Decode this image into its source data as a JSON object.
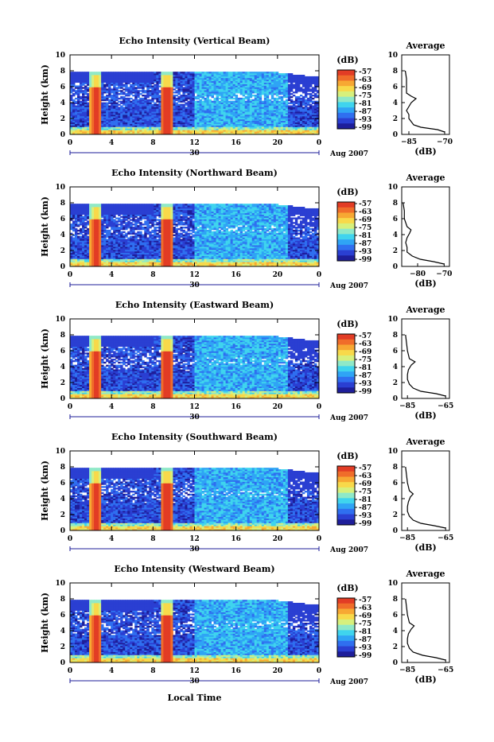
{
  "figure": {
    "xlabel": "Local Time",
    "date_mark": "30",
    "date_suffix": "Aug 2007",
    "cbar_unit": "(dB)",
    "profile_title": "Average",
    "profile_xlabel": "(dB)"
  },
  "colormap": [
    "#1e1e9a",
    "#2a3fd2",
    "#2f6ff0",
    "#2fa4f5",
    "#3fd4ee",
    "#8fe9c8",
    "#d7f07c",
    "#f8d94a",
    "#f7a833",
    "#f06d2a",
    "#e23c25"
  ],
  "chart_data": [
    {
      "type": "heatmap",
      "title": "Echo Intensity (Vertical Beam)",
      "ylabel": "Height (km)",
      "xticks": [
        "0",
        "4",
        "8",
        "12",
        "16",
        "20",
        "0"
      ],
      "yticks": [
        "0",
        "2",
        "4",
        "6",
        "8",
        "10"
      ],
      "xlim": [
        0,
        24
      ],
      "ylim": [
        0,
        10
      ],
      "colorbar_ticks": [
        "-57",
        "-63",
        "-69",
        "-75",
        "-81",
        "-87",
        "-93",
        "-99"
      ],
      "rain_intervals": [
        [
          1.9,
          3.0
        ],
        [
          8.7,
          10.0
        ]
      ],
      "top_km": 7.8,
      "profile": {
        "xticks": [
          "-85",
          "-70"
        ],
        "xlim": [
          -88,
          -68
        ],
        "yticks": [
          "0",
          "2",
          "4",
          "6",
          "8",
          "10"
        ],
        "ylim": [
          0,
          10
        ],
        "values": [
          [
            0.3,
            -70
          ],
          [
            0.6,
            -73
          ],
          [
            0.9,
            -80
          ],
          [
            1.2,
            -83
          ],
          [
            1.6,
            -84
          ],
          [
            2.0,
            -85
          ],
          [
            2.5,
            -85
          ],
          [
            3.0,
            -86
          ],
          [
            3.5,
            -85
          ],
          [
            4.0,
            -84
          ],
          [
            4.5,
            -82
          ],
          [
            4.8,
            -84
          ],
          [
            5.2,
            -86
          ],
          [
            6.0,
            -86
          ],
          [
            7.0,
            -86
          ],
          [
            8.0,
            -86.5
          ]
        ]
      }
    },
    {
      "type": "heatmap",
      "title": "Echo Intensity (Northward Beam)",
      "ylabel": "Height (km)",
      "xticks": [
        "0",
        "4",
        "8",
        "12",
        "16",
        "20",
        "0"
      ],
      "yticks": [
        "0",
        "2",
        "4",
        "6",
        "8",
        "10"
      ],
      "xlim": [
        0,
        24
      ],
      "ylim": [
        0,
        10
      ],
      "colorbar_ticks": [
        "-57",
        "-63",
        "-69",
        "-75",
        "-81",
        "-87",
        "-93",
        "-99"
      ],
      "rain_intervals": [
        [
          1.9,
          3.0
        ],
        [
          8.7,
          10.0
        ]
      ],
      "top_km": 7.8,
      "profile": {
        "xticks": [
          "-80",
          "-70"
        ],
        "xlim": [
          -86,
          -68
        ],
        "yticks": [
          "0",
          "2",
          "4",
          "6",
          "8",
          "10"
        ],
        "ylim": [
          0,
          10
        ],
        "values": [
          [
            0.3,
            -70
          ],
          [
            0.6,
            -74
          ],
          [
            0.9,
            -79
          ],
          [
            1.3,
            -82
          ],
          [
            1.8,
            -84
          ],
          [
            2.4,
            -84
          ],
          [
            3.0,
            -84.5
          ],
          [
            3.6,
            -84
          ],
          [
            4.2,
            -83
          ],
          [
            4.6,
            -82.5
          ],
          [
            5.0,
            -84
          ],
          [
            6.0,
            -85
          ],
          [
            7.0,
            -85
          ],
          [
            8.0,
            -85.5
          ]
        ]
      }
    },
    {
      "type": "heatmap",
      "title": "Echo Intensity (Eastward Beam)",
      "ylabel": "Height (km)",
      "xticks": [
        "0",
        "4",
        "8",
        "12",
        "16",
        "20",
        "0"
      ],
      "yticks": [
        "0",
        "2",
        "4",
        "6",
        "8",
        "10"
      ],
      "xlim": [
        0,
        24
      ],
      "ylim": [
        0,
        10
      ],
      "colorbar_ticks": [
        "-57",
        "-63",
        "-69",
        "-75",
        "-81",
        "-87",
        "-93",
        "-99"
      ],
      "rain_intervals": [
        [
          1.9,
          3.0
        ],
        [
          8.7,
          10.0
        ]
      ],
      "top_km": 7.8,
      "profile": {
        "xticks": [
          "-85",
          "-65"
        ],
        "xlim": [
          -88,
          -63
        ],
        "yticks": [
          "0",
          "2",
          "4",
          "6",
          "8",
          "10"
        ],
        "ylim": [
          0,
          10
        ],
        "values": [
          [
            0.3,
            -65
          ],
          [
            0.6,
            -70
          ],
          [
            0.9,
            -78
          ],
          [
            1.3,
            -82
          ],
          [
            1.8,
            -84
          ],
          [
            2.4,
            -85
          ],
          [
            3.0,
            -85
          ],
          [
            3.6,
            -84.5
          ],
          [
            4.2,
            -83
          ],
          [
            4.6,
            -81
          ],
          [
            5.0,
            -84
          ],
          [
            6.0,
            -85
          ],
          [
            7.0,
            -85.5
          ],
          [
            8.0,
            -86
          ]
        ]
      }
    },
    {
      "type": "heatmap",
      "title": "Echo Intensity (Southward Beam)",
      "ylabel": "Height (km)",
      "xticks": [
        "0",
        "4",
        "8",
        "12",
        "16",
        "20",
        "0"
      ],
      "yticks": [
        "0",
        "2",
        "4",
        "6",
        "8",
        "10"
      ],
      "xlim": [
        0,
        24
      ],
      "ylim": [
        0,
        10
      ],
      "colorbar_ticks": [
        "-57",
        "-63",
        "-69",
        "-75",
        "-81",
        "-87",
        "-93",
        "-99"
      ],
      "rain_intervals": [
        [
          1.9,
          3.0
        ],
        [
          8.7,
          10.0
        ]
      ],
      "top_km": 7.8,
      "profile": {
        "xticks": [
          "-85",
          "-65"
        ],
        "xlim": [
          -88,
          -63
        ],
        "yticks": [
          "0",
          "2",
          "4",
          "6",
          "8",
          "10"
        ],
        "ylim": [
          0,
          10
        ],
        "values": [
          [
            0.3,
            -65
          ],
          [
            0.6,
            -71
          ],
          [
            0.9,
            -78
          ],
          [
            1.3,
            -82
          ],
          [
            1.8,
            -84
          ],
          [
            2.4,
            -85
          ],
          [
            3.0,
            -85
          ],
          [
            3.6,
            -84.5
          ],
          [
            4.2,
            -83.5
          ],
          [
            4.6,
            -82
          ],
          [
            5.0,
            -84
          ],
          [
            6.0,
            -85
          ],
          [
            7.0,
            -85.5
          ],
          [
            8.0,
            -86
          ]
        ]
      }
    },
    {
      "type": "heatmap",
      "title": "Echo Intensity (Westward Beam)",
      "ylabel": "Height (km)",
      "xticks": [
        "0",
        "4",
        "8",
        "12",
        "16",
        "20",
        "0"
      ],
      "yticks": [
        "0",
        "2",
        "4",
        "6",
        "8",
        "10"
      ],
      "xlim": [
        0,
        24
      ],
      "ylim": [
        0,
        10
      ],
      "colorbar_ticks": [
        "-57",
        "-63",
        "-69",
        "-75",
        "-81",
        "-87",
        "-93",
        "-99"
      ],
      "rain_intervals": [
        [
          1.9,
          3.0
        ],
        [
          8.7,
          10.0
        ]
      ],
      "top_km": 7.8,
      "profile": {
        "xticks": [
          "-85",
          "-65"
        ],
        "xlim": [
          -88,
          -63
        ],
        "yticks": [
          "0",
          "2",
          "4",
          "6",
          "8",
          "10"
        ],
        "ylim": [
          0,
          10
        ],
        "values": [
          [
            0.3,
            -65
          ],
          [
            0.6,
            -70
          ],
          [
            0.9,
            -77
          ],
          [
            1.3,
            -82
          ],
          [
            1.8,
            -84
          ],
          [
            2.4,
            -85
          ],
          [
            3.0,
            -85
          ],
          [
            3.6,
            -84.5
          ],
          [
            4.2,
            -83
          ],
          [
            4.6,
            -81.5
          ],
          [
            5.0,
            -84
          ],
          [
            6.0,
            -85
          ],
          [
            7.0,
            -85.5
          ],
          [
            8.0,
            -86
          ]
        ]
      }
    }
  ]
}
